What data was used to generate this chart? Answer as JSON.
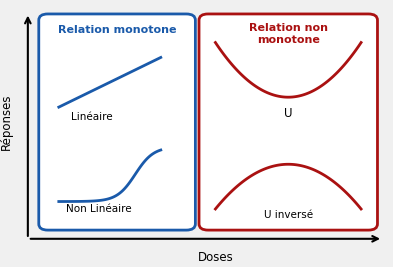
{
  "bg_color": "#f0f0f0",
  "blue_color": "#1a5aaa",
  "red_color": "#aa1111",
  "title_blue": "Relation monotone",
  "title_red": "Relation non\nmonotone",
  "label_lineaire": "Linéaire",
  "label_non_lineaire": "Non Linéaire",
  "label_u": "U",
  "label_u_inv": "U inversé",
  "xlabel": "Doses",
  "ylabel": "Réponses"
}
